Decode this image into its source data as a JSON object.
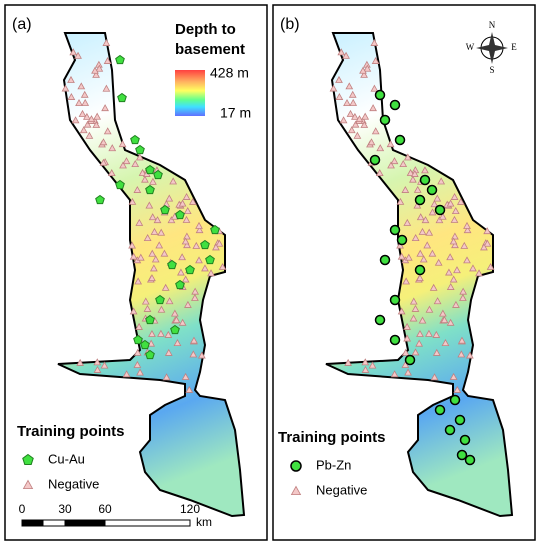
{
  "panels": [
    {
      "label": "(a)",
      "legend": {
        "title_lines": [
          "Depth to",
          "basement"
        ],
        "high": "428 m",
        "low": "17 m"
      },
      "training": {
        "title": "Training points",
        "positive": "Cu-Au",
        "negative": "Negative"
      },
      "scale": {
        "ticks": [
          "0",
          "30",
          "60",
          "120"
        ],
        "unit": "km"
      }
    },
    {
      "label": "(b)",
      "compass": {
        "n": "N",
        "e": "E",
        "s": "S",
        "w": "W"
      },
      "training": {
        "title": "Training points",
        "positive": "Pb-Zn",
        "negative": "Negative"
      }
    }
  ]
}
